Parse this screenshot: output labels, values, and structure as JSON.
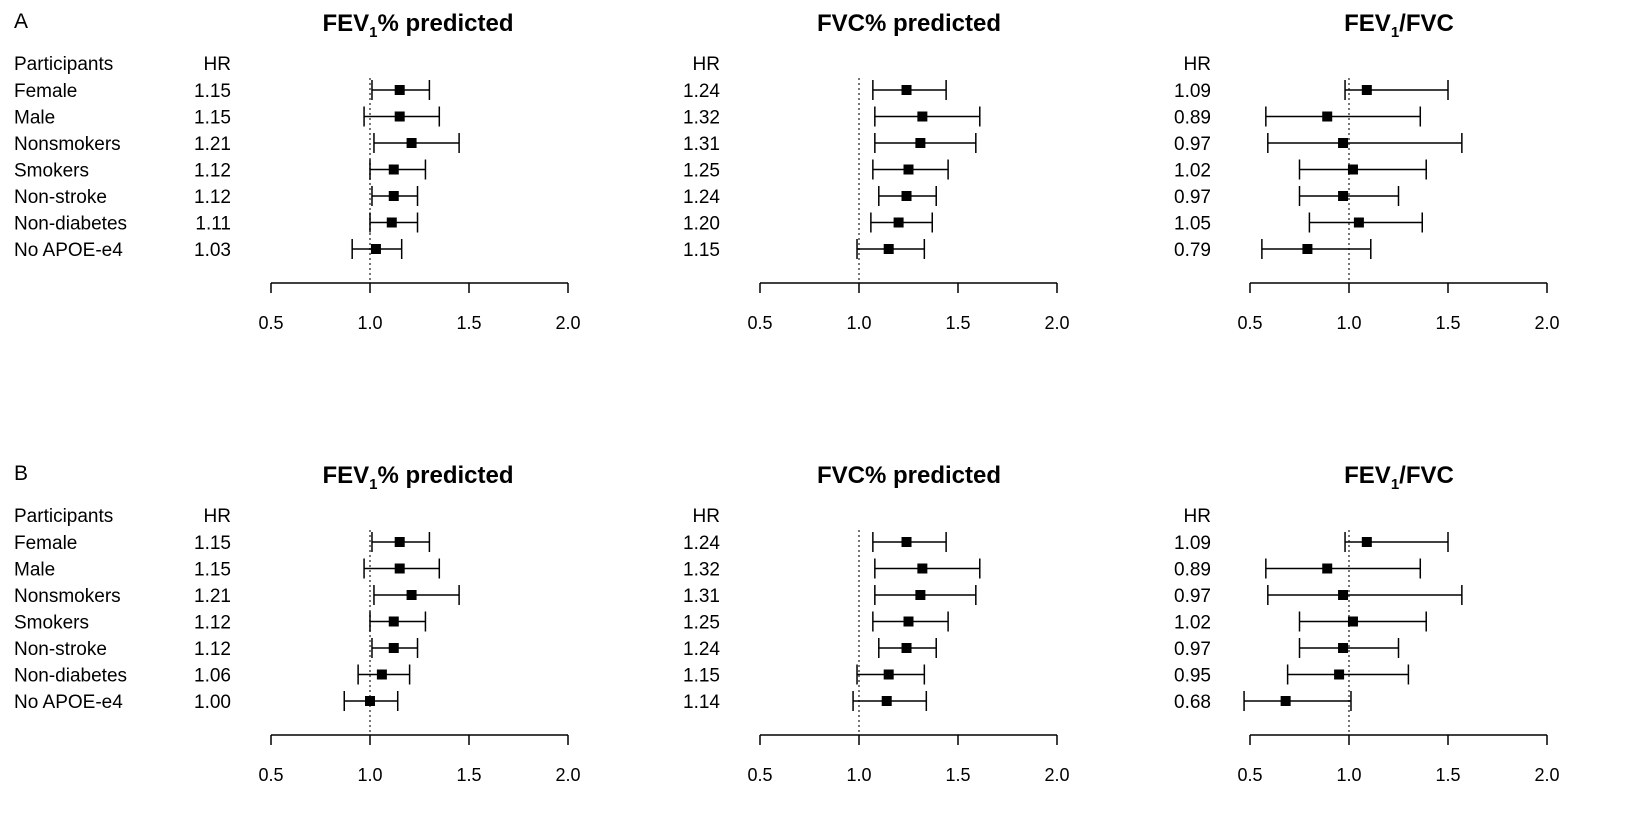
{
  "chart_data": [
    {
      "panel": "A",
      "header_participants": "Participants",
      "header_hr": "HR",
      "rows": [
        "Female",
        "Male",
        "Nonsmokers",
        "Smokers",
        "Non-stroke",
        "Non-diabetes",
        "No APOE-e4"
      ],
      "xlim": [
        0.5,
        2.0
      ],
      "xticks": [
        "0.5",
        "1.0",
        "1.5",
        "2.0"
      ],
      "reference_line": 1.0,
      "subplots": [
        {
          "type": "forest",
          "title": "FEV",
          "title_sub": "1",
          "title_rest": "% predicted",
          "hr_labels": [
            "1.15",
            "1.15",
            "1.21",
            "1.12",
            "1.12",
            "1.11",
            "1.03"
          ],
          "hr": [
            1.15,
            1.15,
            1.21,
            1.12,
            1.12,
            1.11,
            1.03
          ],
          "lower": [
            1.01,
            0.97,
            1.02,
            1.0,
            1.01,
            1.0,
            0.91
          ],
          "upper": [
            1.3,
            1.35,
            1.45,
            1.28,
            1.24,
            1.24,
            1.16
          ]
        },
        {
          "type": "forest",
          "title": "FVC% predicted",
          "title_sub": "",
          "title_rest": "",
          "hr_labels": [
            "1.24",
            "1.32",
            "1.31",
            "1.25",
            "1.24",
            "1.20",
            "1.15"
          ],
          "hr": [
            1.24,
            1.32,
            1.31,
            1.25,
            1.24,
            1.2,
            1.15
          ],
          "lower": [
            1.07,
            1.08,
            1.08,
            1.07,
            1.1,
            1.06,
            0.99
          ],
          "upper": [
            1.44,
            1.61,
            1.59,
            1.45,
            1.39,
            1.37,
            1.33
          ]
        },
        {
          "type": "forest",
          "title": "FEV",
          "title_sub": "1",
          "title_rest": "/FVC",
          "hr_labels": [
            "1.09",
            "0.89",
            "0.97",
            "1.02",
            "0.97",
            "1.05",
            "0.79"
          ],
          "hr": [
            1.09,
            0.89,
            0.97,
            1.02,
            0.97,
            1.05,
            0.79
          ],
          "lower": [
            0.98,
            0.58,
            0.59,
            0.75,
            0.75,
            0.8,
            0.56
          ],
          "upper": [
            1.5,
            1.36,
            1.57,
            1.39,
            1.25,
            1.37,
            1.11
          ]
        }
      ]
    },
    {
      "panel": "B",
      "header_participants": "Participants",
      "header_hr": "HR",
      "rows": [
        "Female",
        "Male",
        "Nonsmokers",
        "Smokers",
        "Non-stroke",
        "Non-diabetes",
        "No APOE-e4"
      ],
      "xlim": [
        0.5,
        2.0
      ],
      "xticks": [
        "0.5",
        "1.0",
        "1.5",
        "2.0"
      ],
      "reference_line": 1.0,
      "subplots": [
        {
          "type": "forest",
          "title": "FEV",
          "title_sub": "1",
          "title_rest": "% predicted",
          "hr_labels": [
            "1.15",
            "1.15",
            "1.21",
            "1.12",
            "1.12",
            "1.06",
            "1.00"
          ],
          "hr": [
            1.15,
            1.15,
            1.21,
            1.12,
            1.12,
            1.06,
            1.0
          ],
          "lower": [
            1.01,
            0.97,
            1.02,
            1.0,
            1.01,
            0.94,
            0.87
          ],
          "upper": [
            1.3,
            1.35,
            1.45,
            1.28,
            1.24,
            1.2,
            1.14
          ]
        },
        {
          "type": "forest",
          "title": "FVC% predicted",
          "title_sub": "",
          "title_rest": "",
          "hr_labels": [
            "1.24",
            "1.32",
            "1.31",
            "1.25",
            "1.24",
            "1.15",
            "1.14"
          ],
          "hr": [
            1.24,
            1.32,
            1.31,
            1.25,
            1.24,
            1.15,
            1.14
          ],
          "lower": [
            1.07,
            1.08,
            1.08,
            1.07,
            1.1,
            0.99,
            0.97
          ],
          "upper": [
            1.44,
            1.61,
            1.59,
            1.45,
            1.39,
            1.33,
            1.34
          ]
        },
        {
          "type": "forest",
          "title": "FEV",
          "title_sub": "1",
          "title_rest": "/FVC",
          "hr_labels": [
            "1.09",
            "0.89",
            "0.97",
            "1.02",
            "0.97",
            "0.95",
            "0.68"
          ],
          "hr": [
            1.09,
            0.89,
            0.97,
            1.02,
            0.97,
            0.95,
            0.68
          ],
          "lower": [
            0.98,
            0.58,
            0.59,
            0.75,
            0.75,
            0.69,
            0.47
          ],
          "upper": [
            1.5,
            1.36,
            1.57,
            1.39,
            1.25,
            1.3,
            1.01
          ]
        }
      ]
    }
  ]
}
